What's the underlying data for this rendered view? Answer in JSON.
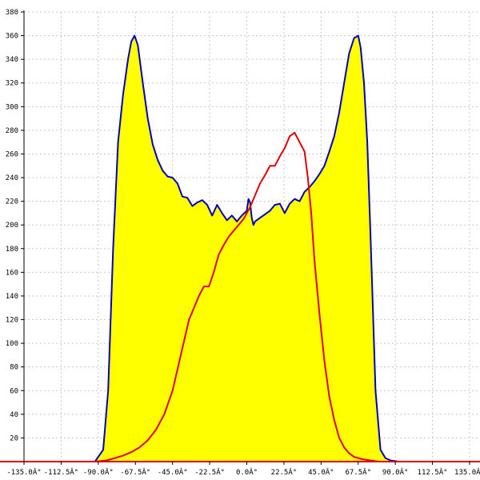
{
  "chart_data": {
    "type": "area",
    "xlim": [
      -135,
      135
    ],
    "ylim": [
      0,
      380
    ],
    "grid": true,
    "x_ticks": [
      {
        "value": -135,
        "label": "-135.0Â°"
      },
      {
        "value": -112.5,
        "label": "-112.5Â°"
      },
      {
        "value": -90,
        "label": "-90.0Â°"
      },
      {
        "value": -67.5,
        "label": "-67.5Â°"
      },
      {
        "value": -45,
        "label": "-45.0Â°"
      },
      {
        "value": -22.5,
        "label": "-22.5Â°"
      },
      {
        "value": 0,
        "label": "0.0Â°"
      },
      {
        "value": 22.5,
        "label": "22.5Â°"
      },
      {
        "value": 45,
        "label": "45.0Â°"
      },
      {
        "value": 67.5,
        "label": "67.5Â°"
      },
      {
        "value": 90,
        "label": "90.0Â°"
      },
      {
        "value": 112.5,
        "label": "112.5Â°"
      },
      {
        "value": 135,
        "label": "135.0Â°"
      }
    ],
    "y_ticks": [
      {
        "value": 20,
        "label": "20"
      },
      {
        "value": 40,
        "label": "40"
      },
      {
        "value": 60,
        "label": "60"
      },
      {
        "value": 80,
        "label": "80"
      },
      {
        "value": 100,
        "label": "100"
      },
      {
        "value": 120,
        "label": "120"
      },
      {
        "value": 140,
        "label": "140"
      },
      {
        "value": 160,
        "label": "160"
      },
      {
        "value": 180,
        "label": "180"
      },
      {
        "value": 200,
        "label": "200"
      },
      {
        "value": 220,
        "label": "220"
      },
      {
        "value": 240,
        "label": "240"
      },
      {
        "value": 260,
        "label": "260"
      },
      {
        "value": 280,
        "label": "280"
      },
      {
        "value": 300,
        "label": "300"
      },
      {
        "value": 320,
        "label": "320"
      },
      {
        "value": 340,
        "label": "340"
      },
      {
        "value": 360,
        "label": "360"
      },
      {
        "value": 380,
        "label": "380"
      }
    ],
    "series": [
      {
        "fill": "#ffff00",
        "color": "#0000c0",
        "x": [
          -92,
          -87,
          -84,
          -81,
          -78,
          -75,
          -72,
          -70,
          -68,
          -66,
          -63,
          -60,
          -57,
          -54,
          -51,
          -48,
          -45,
          -42,
          -39,
          -36,
          -33,
          -30,
          -27,
          -24,
          -21,
          -18,
          -15,
          -12,
          -9,
          -6,
          -3,
          0,
          1,
          2,
          3,
          4,
          5,
          8,
          11,
          14,
          17,
          20,
          23,
          26,
          29,
          32,
          35,
          38,
          41,
          44,
          47,
          50,
          53,
          56,
          59,
          62,
          65,
          67.5,
          69,
          71,
          73,
          75,
          78,
          81,
          84,
          87,
          92
        ],
        "y": [
          0,
          10,
          60,
          180,
          270,
          310,
          340,
          355,
          360,
          352,
          320,
          290,
          268,
          255,
          246,
          241,
          240,
          235,
          224,
          223,
          216,
          219,
          221,
          217,
          208,
          217,
          210,
          204,
          208,
          203,
          208,
          212,
          222,
          219,
          206,
          200,
          203,
          206,
          209,
          212,
          217,
          218,
          210,
          218,
          222,
          220,
          228,
          232,
          237,
          243,
          250,
          262,
          275,
          295,
          320,
          345,
          358,
          360,
          350,
          320,
          270,
          190,
          60,
          10,
          3,
          1,
          0
        ]
      },
      {
        "color": "#e00000",
        "x": [
          -92,
          -85,
          -80,
          -75,
          -70,
          -65,
          -60,
          -55,
          -50,
          -45,
          -40,
          -35,
          -32,
          -29,
          -26,
          -23,
          -20,
          -17,
          -14,
          -11,
          -8,
          -5,
          -2,
          0,
          2,
          5,
          8,
          11,
          14,
          17,
          20,
          23,
          26,
          29,
          32,
          35,
          37,
          39,
          41,
          44,
          47,
          50,
          53,
          56,
          59,
          62,
          65,
          70,
          75,
          80,
          85,
          90
        ],
        "y": [
          0,
          1,
          3,
          5,
          8,
          12,
          18,
          27,
          40,
          60,
          90,
          120,
          130,
          140,
          148,
          148,
          160,
          175,
          183,
          190,
          195,
          200,
          205,
          210,
          215,
          225,
          235,
          242,
          250,
          250,
          258,
          265,
          275,
          278,
          270,
          262,
          240,
          210,
          170,
          125,
          85,
          55,
          35,
          20,
          12,
          7,
          4,
          2,
          1,
          0,
          0,
          0
        ]
      }
    ]
  }
}
